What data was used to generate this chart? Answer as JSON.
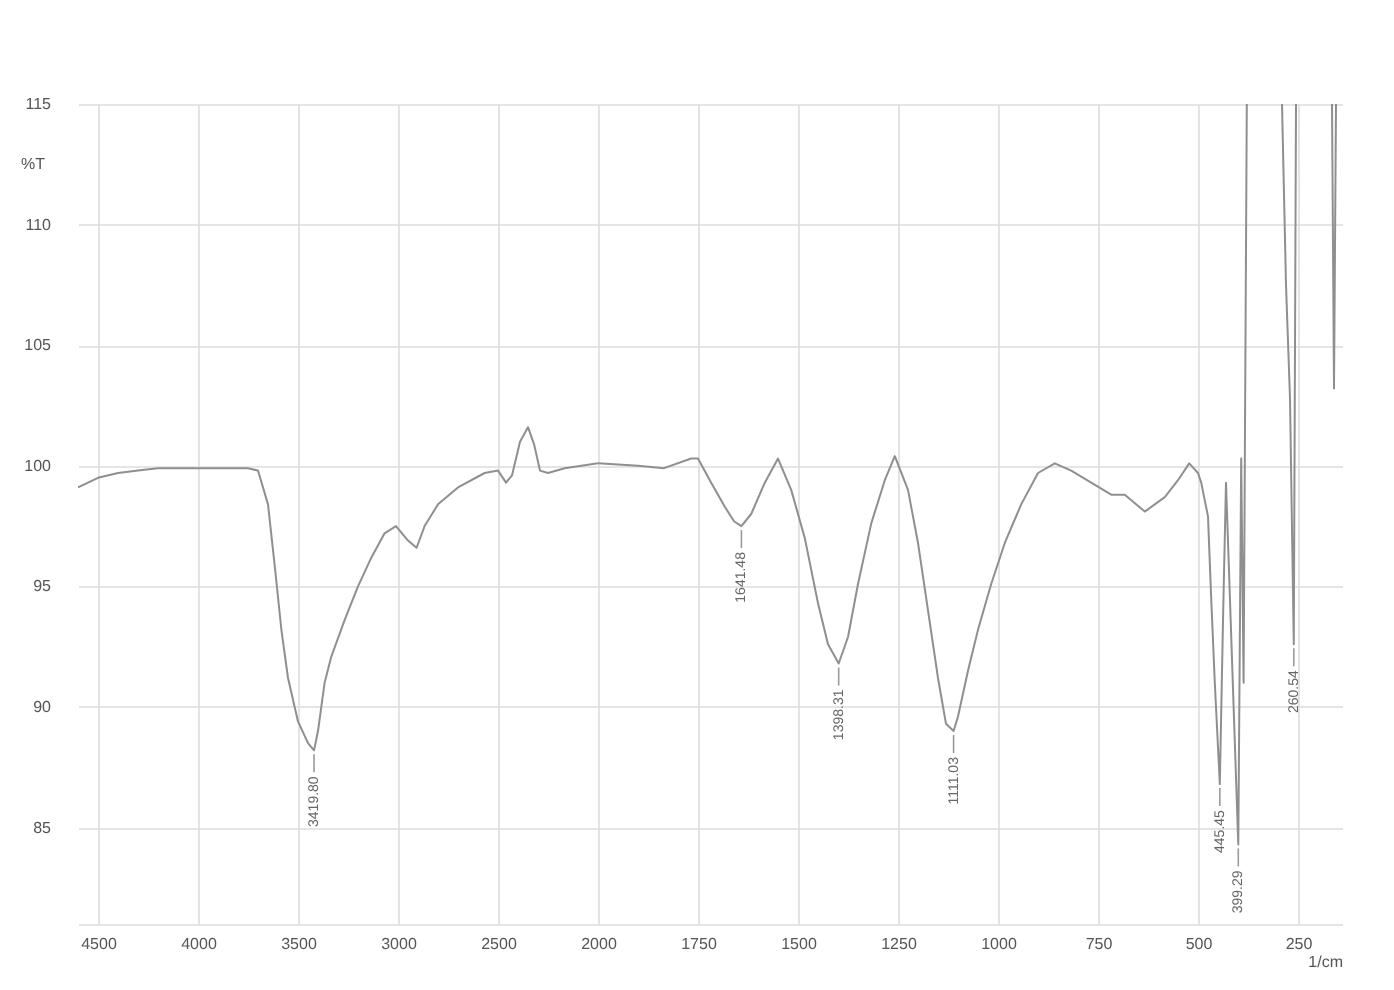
{
  "chart_data": [
    {
      "type": "line",
      "ylabel": "%T",
      "xlim": [
        4600,
        2000
      ],
      "xticks": [
        4500,
        4000,
        3500,
        3000,
        2500,
        2000
      ],
      "ylim": [
        81,
        115
      ],
      "yticks": [
        85,
        90,
        95,
        100,
        105,
        110,
        115
      ],
      "grid": true,
      "x": [
        4600,
        4500,
        4400,
        4300,
        4200,
        4000,
        3800,
        3750,
        3700,
        3650,
        3617,
        3583,
        3550,
        3500,
        3450,
        3419.8,
        3400,
        3367,
        3333,
        3267,
        3200,
        3133,
        3067,
        3010,
        2950,
        2907,
        2867,
        2800,
        2700,
        2567,
        2500,
        2460,
        2430,
        2390,
        2350,
        2320,
        2290,
        2250,
        2167,
        2000
      ],
      "series": [
        {
          "color": "#8f8f8f",
          "values": [
            99.1,
            99.5,
            99.7,
            99.8,
            99.9,
            99.9,
            99.9,
            99.9,
            99.8,
            98.4,
            95.9,
            93.2,
            91.2,
            89.4,
            88.5,
            88.2,
            89.0,
            91.0,
            92.1,
            93.6,
            95.0,
            96.2,
            97.2,
            97.5,
            96.9,
            96.6,
            97.5,
            98.4,
            99.1,
            99.7,
            99.8,
            99.3,
            99.6,
            101.0,
            101.6,
            100.9,
            99.8,
            99.7,
            99.9,
            100.1
          ]
        }
      ],
      "annotations": [
        {
          "text": "3419.80",
          "x": 3419.8,
          "y": 88.2
        }
      ]
    },
    {
      "type": "line",
      "xlabel": "1/cm",
      "xlim": [
        2000,
        140
      ],
      "xticks": [
        1750,
        1500,
        1250,
        1000,
        750,
        500,
        250
      ],
      "ylim": [
        81,
        115
      ],
      "yticks": [
        85,
        90,
        95,
        100,
        105,
        110,
        115
      ],
      "grid": true,
      "tick_labels": "x",
      "x": [
        2000,
        1900,
        1835,
        1767,
        1750,
        1717,
        1683,
        1660,
        1641.48,
        1617,
        1583,
        1550,
        1517,
        1483,
        1450,
        1425,
        1398.31,
        1375,
        1350,
        1317,
        1283,
        1258,
        1225,
        1200,
        1175,
        1150,
        1130,
        1111.03,
        1100,
        1075,
        1050,
        1017,
        983,
        942,
        900,
        858,
        817,
        767,
        717,
        683,
        633,
        583,
        550,
        522,
        500,
        492,
        475,
        467,
        458,
        445.45,
        437,
        430,
        399.29,
        392,
        386,
        378,
        330,
        290,
        280,
        270,
        260.54,
        255,
        200,
        165,
        160,
        155
      ],
      "series": [
        {
          "color": "#8f8f8f",
          "values": [
            100.1,
            100.0,
            99.9,
            100.3,
            100.3,
            99.3,
            98.3,
            97.7,
            97.5,
            98.0,
            99.3,
            100.3,
            99.0,
            97.0,
            94.3,
            92.6,
            91.8,
            92.9,
            95.1,
            97.6,
            99.4,
            100.4,
            99.0,
            96.8,
            94.0,
            91.2,
            89.3,
            89.0,
            89.6,
            91.5,
            93.2,
            95.1,
            96.8,
            98.4,
            99.7,
            100.1,
            99.8,
            99.3,
            98.8,
            98.8,
            98.1,
            98.7,
            99.4,
            100.1,
            99.7,
            99.3,
            97.9,
            94.5,
            91.0,
            86.8,
            94.0,
            99.3,
            84.3,
            100.3,
            91.0,
            115,
            null,
            115,
            107.5,
            102.8,
            92.6,
            115,
            null,
            115,
            103.2,
            115
          ]
        }
      ],
      "annotations": [
        {
          "text": "1641.48",
          "x": 1641.48,
          "y": 97.5
        },
        {
          "text": "1398.31",
          "x": 1398.31,
          "y": 91.8
        },
        {
          "text": "1111.03",
          "x": 1111.03,
          "y": 89.0
        },
        {
          "text": "445.45",
          "x": 445.45,
          "y": 86.8
        },
        {
          "text": "399.29",
          "x": 399.29,
          "y": 84.3
        },
        {
          "text": "260.54",
          "x": 260.54,
          "y": 92.6
        }
      ]
    }
  ]
}
